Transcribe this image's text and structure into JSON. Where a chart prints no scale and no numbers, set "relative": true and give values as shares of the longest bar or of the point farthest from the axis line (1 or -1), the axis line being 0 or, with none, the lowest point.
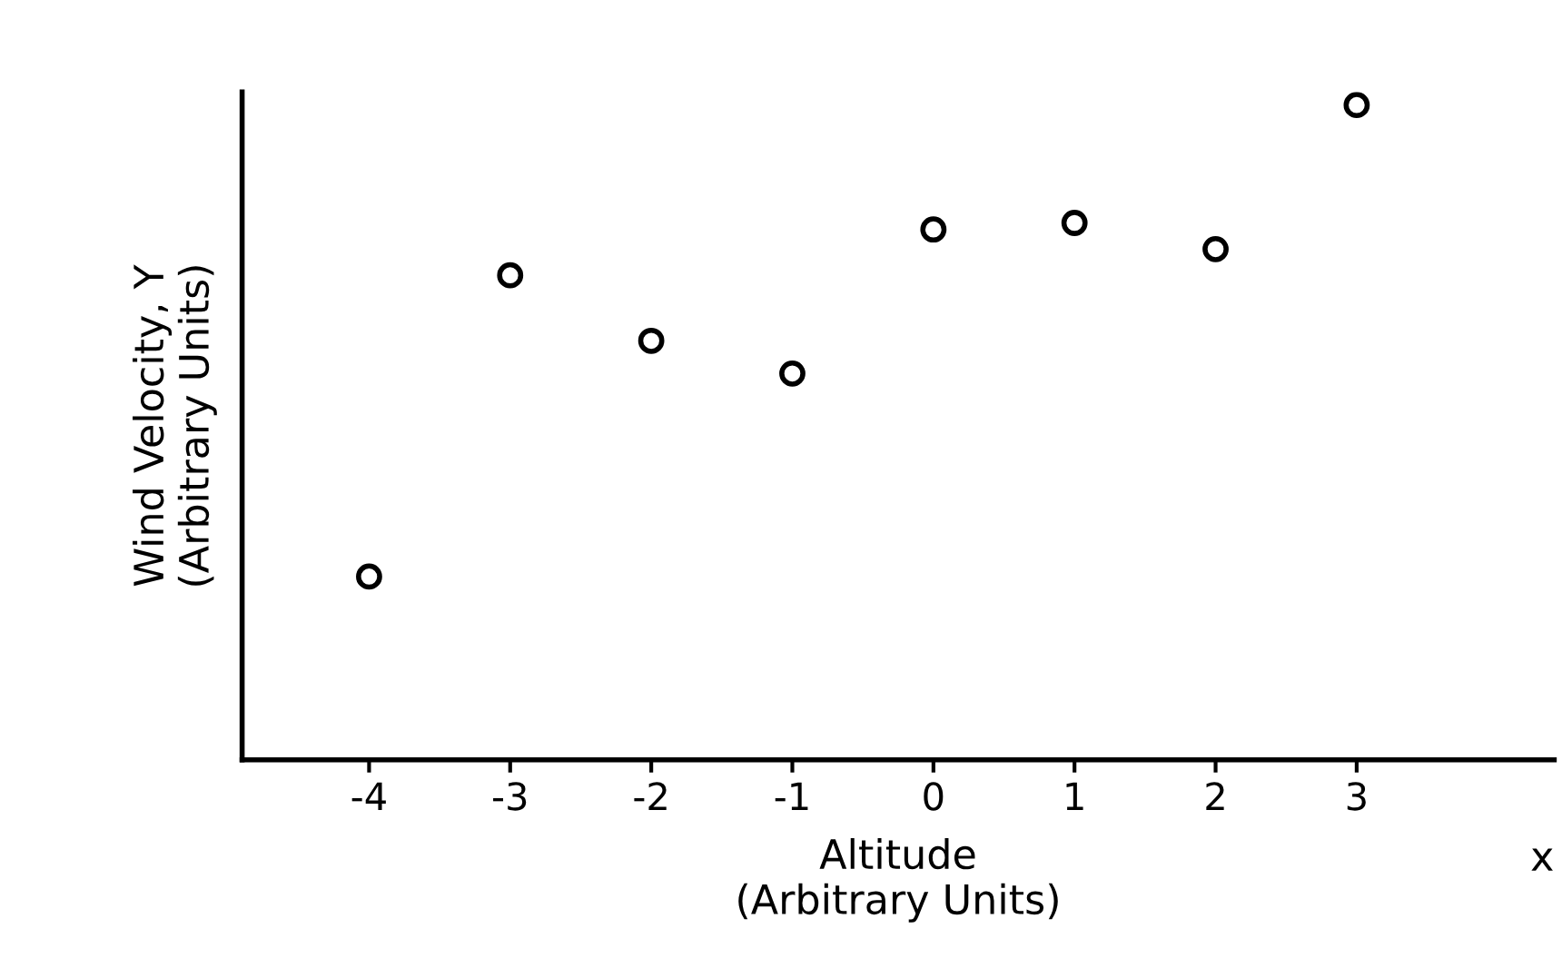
{
  "chart_data": {
    "type": "scatter",
    "relative": true,
    "xlabel": "Altitude\n(Arbitrary Units)",
    "ylabel": "Wind Velocity, Y\n(Arbitrary Units)",
    "x": [
      -4,
      -3,
      -2,
      -1,
      0,
      1,
      2,
      3
    ],
    "series": [
      {
        "color": "#000000",
        "values": [
          0.28,
          0.74,
          0.64,
          0.59,
          0.81,
          0.82,
          0.78,
          1.0
        ]
      }
    ],
    "xlim": [
      -4.9,
      4.4
    ],
    "xticks": [
      -4,
      -3,
      -2,
      -1,
      0,
      1,
      2,
      3
    ],
    "annotations": [
      "x"
    ],
    "marker": "circle",
    "grid": false
  }
}
